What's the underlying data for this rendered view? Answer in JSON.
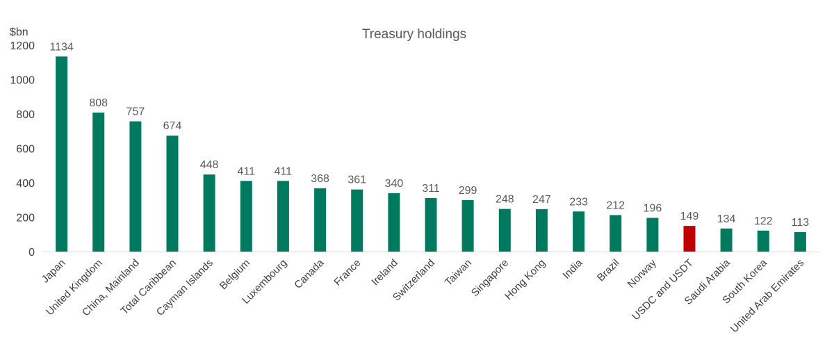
{
  "chart_data": {
    "type": "bar",
    "title": "Treasury holdings",
    "ylabel": "$bn",
    "xlabel": "",
    "ylim": [
      0,
      1200
    ],
    "yticks": [
      0,
      200,
      400,
      600,
      800,
      1000,
      1200
    ],
    "grid": false,
    "legend": "none",
    "categories": [
      "Japan",
      "United Kingdom",
      "China, Mainland",
      "Total Caribbean",
      "Cayman Islands",
      "Belgium",
      "Luxembourg",
      "Canada",
      "France",
      "Ireland",
      "Switzerland",
      "Taiwan",
      "Singapore",
      "Hong Kong",
      "India",
      "Brazil",
      "Norway",
      "USDC and USDT",
      "Saudi Arabia",
      "South Korea",
      "United Arab Emirates"
    ],
    "values": [
      1134,
      808,
      757,
      674,
      448,
      411,
      411,
      368,
      361,
      340,
      311,
      299,
      248,
      247,
      233,
      212,
      196,
      149,
      134,
      122,
      113
    ],
    "colors": {
      "bar": "#007A5E",
      "highlight": "#C00000",
      "axis": "#D9D9D9"
    },
    "highlight_category": "USDC and USDT"
  }
}
